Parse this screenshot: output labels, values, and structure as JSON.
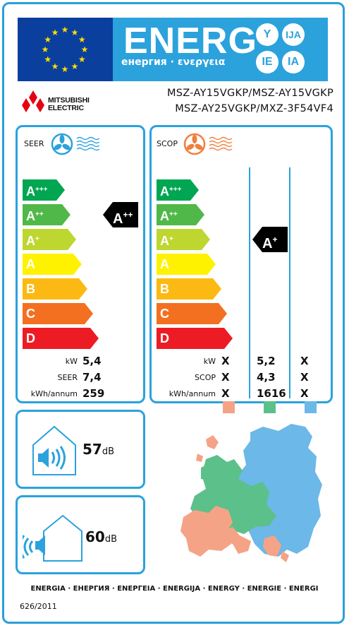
{
  "header": {
    "energ": "ENERG",
    "subtitle": "енергия · ενεργεια",
    "suffixes": [
      "Y",
      "IJA",
      "IE",
      "IA"
    ],
    "flag_color": "#0a3f9e",
    "banner_color": "#2ba2dc",
    "star_color": "#ffdd00"
  },
  "brand": {
    "name_line1": "MITSUBISHI",
    "name_line2": "ELECTRIC",
    "logo_color": "#e60012"
  },
  "models": {
    "line1": "MSZ-AY15VGKP/MSZ-AY15VGKP",
    "line2": "MSZ-AY25VGKP/MXZ-3F54VF4"
  },
  "scale": {
    "classes": [
      {
        "letter": "A",
        "plus": "+++",
        "color": "#00a651"
      },
      {
        "letter": "A",
        "plus": "++",
        "color": "#50b848"
      },
      {
        "letter": "A",
        "plus": "+",
        "color": "#bed630"
      },
      {
        "letter": "A",
        "plus": "",
        "color": "#fff200"
      },
      {
        "letter": "B",
        "plus": "",
        "color": "#fdb913"
      },
      {
        "letter": "C",
        "plus": "",
        "color": "#f37021"
      },
      {
        "letter": "D",
        "plus": "",
        "color": "#ed1c24"
      }
    ]
  },
  "cooling": {
    "title": "SEER",
    "fan_icon_color": "#2ba2dc",
    "rating_letter": "A",
    "rating_plus": "++",
    "rating_class_index": 1,
    "rows": [
      {
        "label": "kW",
        "value": "5,4"
      },
      {
        "label": "SEER",
        "value": "7,4"
      },
      {
        "label": "kWh/annum",
        "value": "259"
      }
    ]
  },
  "heating": {
    "title": "SCOP",
    "fan_icon_color": "#f07f3c",
    "rating_letter": "A",
    "rating_plus": "+",
    "rating_class_index": 2,
    "rows": [
      {
        "label": "kW",
        "values": [
          "X",
          "5,2",
          "X"
        ]
      },
      {
        "label": "SCOP",
        "values": [
          "X",
          "4,3",
          "X"
        ]
      },
      {
        "label": "kWh/annum",
        "values": [
          "X",
          "1616",
          "X"
        ]
      }
    ],
    "zone_colors": [
      "#f5a386",
      "#5cc08a",
      "#6cb8e8"
    ]
  },
  "noise": {
    "indoor": {
      "value": "57",
      "unit": "dB"
    },
    "outdoor": {
      "value": "60",
      "unit": "dB"
    }
  },
  "footer": {
    "languages": "ENERGIA · ЕНЕРГИЯ · ΕΝΕΡΓΕΙΑ · ENERGIJA · ENERGY · ENERGIE · ENERGI",
    "regulation": "626/2011"
  }
}
